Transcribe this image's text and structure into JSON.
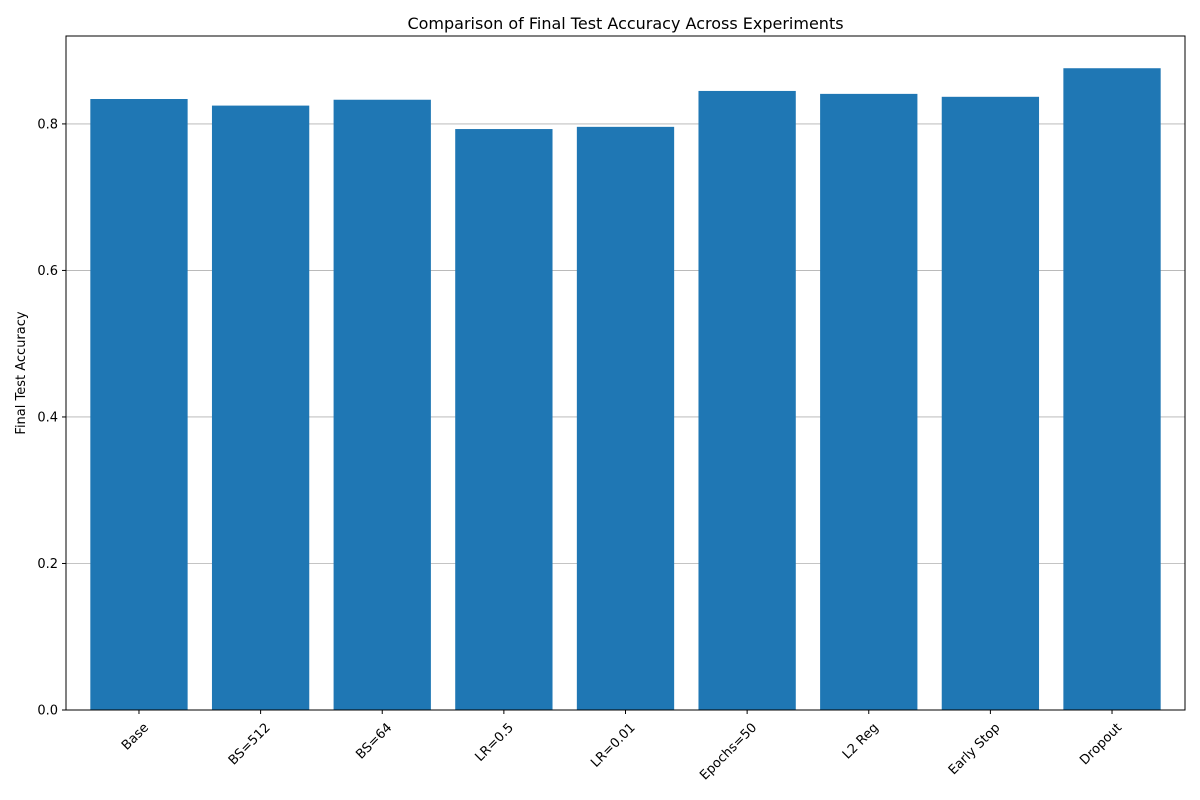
{
  "chart_data": {
    "type": "bar",
    "title": "Comparison of Final Test Accuracy Across Experiments",
    "xlabel": "",
    "ylabel": "Final Test Accuracy",
    "categories": [
      "Base",
      "BS=512",
      "BS=64",
      "LR=0.5",
      "LR=0.01",
      "Epochs=50",
      "L2 Reg",
      "Early Stop",
      "Dropout"
    ],
    "values": [
      0.834,
      0.825,
      0.833,
      0.793,
      0.796,
      0.845,
      0.841,
      0.837,
      0.876
    ],
    "ylim": [
      0,
      0.92
    ],
    "yticks": [
      0.0,
      0.2,
      0.4,
      0.6,
      0.8
    ],
    "ytick_labels": [
      "0.0",
      "0.2",
      "0.4",
      "0.6",
      "0.8"
    ],
    "grid": "y",
    "xtick_rotation": 45,
    "bar_color": "#1f77b4",
    "grid_color": "#b0b0b0",
    "axis_color": "#000000"
  }
}
